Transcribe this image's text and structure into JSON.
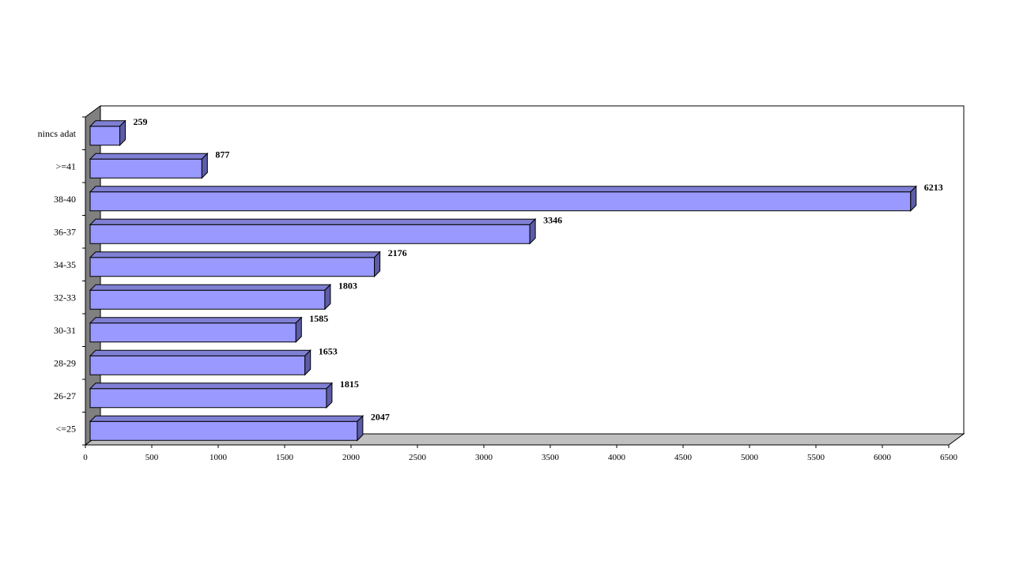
{
  "chart_data": {
    "type": "bar",
    "orientation": "horizontal",
    "style": "3d",
    "categories": [
      "<=25",
      "26-27",
      "28-29",
      "30-31",
      "32-33",
      "34-35",
      "36-37",
      "38-40",
      ">=41",
      "nincs adat"
    ],
    "values": [
      2047,
      1815,
      1653,
      1585,
      1803,
      2176,
      3346,
      6213,
      877,
      259
    ],
    "title": "",
    "xlabel": "",
    "ylabel": "",
    "xlim": [
      0,
      6500
    ],
    "x_ticks": [
      "0",
      "500",
      "1000",
      "1500",
      "2000",
      "2500",
      "3000",
      "3500",
      "4000",
      "4500",
      "5000",
      "5500",
      "6000",
      "6500"
    ],
    "grid": false,
    "legend": "none",
    "data_labels": true,
    "colors": {
      "bar_front": "#9999ff",
      "bar_top": "#7f7fd4",
      "bar_side": "#5c5ca8",
      "bar_stroke": "#000000",
      "back_wall": "#ffffff",
      "side_wall": "#808080",
      "floor": "#c0c0c0"
    }
  }
}
